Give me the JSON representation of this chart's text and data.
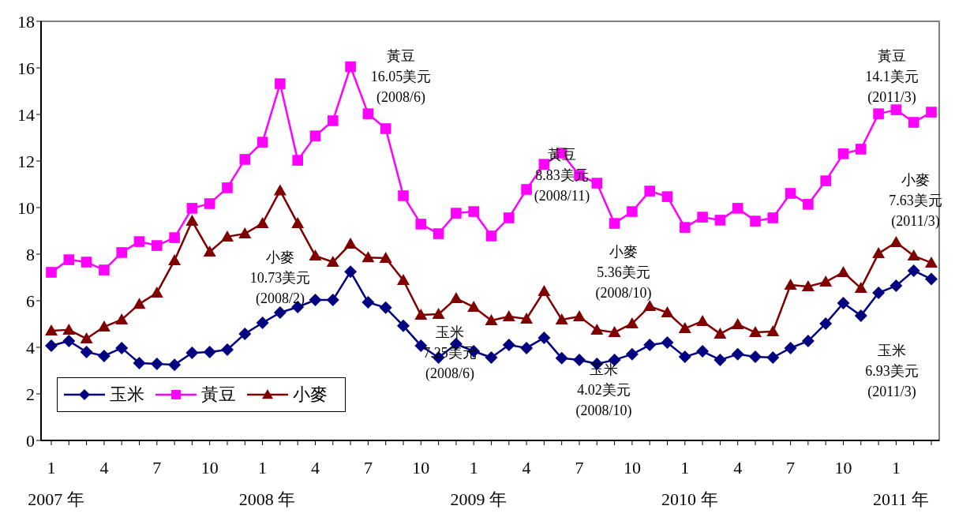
{
  "chart_data": {
    "type": "line",
    "categories": [
      "1\n2007 年",
      null,
      null,
      "4",
      null,
      null,
      "7",
      null,
      null,
      "10",
      null,
      null,
      "1\n2008 年",
      null,
      null,
      "4",
      null,
      null,
      "7",
      null,
      null,
      "10",
      null,
      null,
      "1\n2009 年",
      null,
      null,
      "4",
      null,
      null,
      "7",
      null,
      null,
      "10",
      null,
      null,
      "1\n2010 年",
      null,
      null,
      "4",
      null,
      null,
      "7",
      null,
      null,
      "10",
      null,
      null,
      "1\n2011 年",
      null,
      null
    ],
    "series": [
      {
        "name": "玉米",
        "color": "#000080",
        "marker": "diamond",
        "values": [
          4.07,
          4.27,
          3.8,
          3.63,
          3.97,
          3.32,
          3.29,
          3.25,
          3.76,
          3.8,
          3.9,
          4.58,
          5.05,
          5.49,
          5.73,
          6.03,
          6.03,
          7.25,
          5.93,
          5.7,
          4.92,
          4.07,
          3.56,
          4.14,
          3.83,
          3.56,
          4.1,
          3.97,
          4.41,
          3.53,
          3.46,
          3.29,
          3.46,
          3.7,
          4.1,
          4.2,
          3.59,
          3.83,
          3.46,
          3.7,
          3.59,
          3.56,
          3.97,
          4.27,
          5.02,
          5.9,
          5.36,
          6.34,
          6.64,
          7.29,
          6.93
        ]
      },
      {
        "name": "黃豆",
        "color": "#ff00ff",
        "marker": "square",
        "values": [
          7.22,
          7.76,
          7.66,
          7.32,
          8.07,
          8.54,
          8.37,
          8.71,
          9.97,
          10.17,
          10.85,
          12.07,
          12.81,
          15.32,
          12.03,
          13.08,
          13.73,
          16.05,
          14.03,
          13.39,
          10.51,
          9.29,
          8.88,
          9.76,
          9.83,
          8.78,
          9.56,
          10.78,
          11.86,
          12.34,
          11.39,
          11.05,
          9.32,
          9.83,
          10.71,
          10.47,
          9.15,
          9.59,
          9.46,
          9.97,
          9.42,
          9.56,
          10.61,
          10.14,
          11.15,
          12.31,
          12.51,
          14.03,
          14.2,
          13.66,
          14.1
        ]
      },
      {
        "name": "小麥",
        "color": "#800000",
        "marker": "triangle",
        "values": [
          4.71,
          4.75,
          4.37,
          4.88,
          5.19,
          5.86,
          6.34,
          7.73,
          9.42,
          8.1,
          8.75,
          8.88,
          9.32,
          10.73,
          9.32,
          7.93,
          7.66,
          8.44,
          7.86,
          7.83,
          6.88,
          5.39,
          5.42,
          6.1,
          5.73,
          5.15,
          5.32,
          5.22,
          6.41,
          5.19,
          5.32,
          4.75,
          4.64,
          5.02,
          5.76,
          5.49,
          4.81,
          5.12,
          4.58,
          4.98,
          4.64,
          4.68,
          6.68,
          6.61,
          6.81,
          7.22,
          6.54,
          8.03,
          8.51,
          7.93,
          7.63
        ]
      }
    ],
    "ylim": [
      0,
      18
    ],
    "yticks": [
      0,
      2,
      4,
      6,
      8,
      10,
      12,
      14,
      16,
      18
    ],
    "grid": false,
    "legend": "bottom left",
    "line_style": "solid",
    "annotations": [
      "黃豆\n16.05美元\n(2008/6)",
      "小麥\n10.73美元\n(2008/2)",
      "黃豆\n8.83美元\n(2008/11)",
      "玉米\n7.25美元\n(2008/6)",
      "小麥\n5.36美元\n(2008/10)",
      "玉米\n4.02美元\n(2008/10)",
      "黃豆\n14.1美元\n(2011/3)",
      "小麥\n7.63美元\n(2011/3)",
      "玉米\n6.93美元\n(2011/3)"
    ]
  }
}
